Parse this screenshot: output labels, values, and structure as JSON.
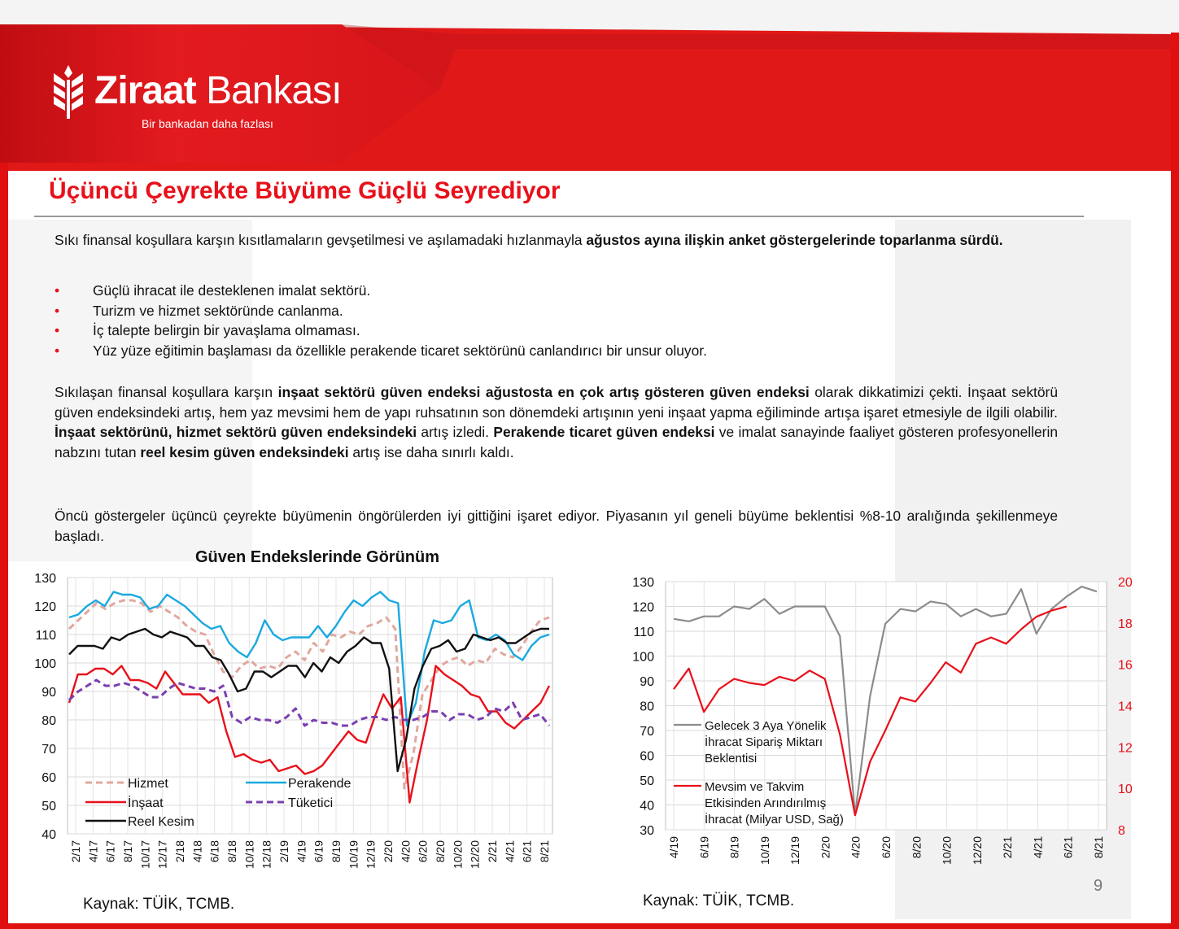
{
  "header": {
    "logo_word1": "Ziraat",
    "logo_word2": "Bankası",
    "tagline": "Bir bankadan daha fazlası"
  },
  "title": "Üçüncü Çeyrekte Büyüme Güçlü Seyrediyor",
  "intro": {
    "text_plain": "Sıkı finansal koşullara karşın kısıtlamaların gevşetilmesi ve aşılamadaki hızlanmayla ",
    "text_bold": "ağustos ayına ilişkin anket göstergelerinde toparlanma sürdü."
  },
  "bullets": [
    "Güçlü ihracat ile desteklenen imalat sektörü.",
    "Turizm ve hizmet sektöründe canlanma.",
    "İç talepte belirgin bir yavaşlama olmaması.",
    "Yüz yüze eğitimin başlaması da özellikle perakende ticaret sektörünü canlandırıcı bir unsur oluyor."
  ],
  "para2": {
    "s1": "Sıkılaşan finansal koşullara karşın ",
    "b1": "inşaat sektörü güven endeksi ağustosta en çok artış gösteren güven endeksi",
    "s2": " olarak dikkatimizi çekti. İnşaat sektörü güven endeksindeki artış, hem yaz mevsimi hem de yapı ruhsatının son dönemdeki artışının yeni inşaat yapma eğiliminde artışa işaret etmesiyle de ilgili olabilir. ",
    "b2": "İnşaat sektörünü, hizmet sektörü güven endeksindeki",
    "s3": " artış izledi. ",
    "b3": "Perakende ticaret güven endeksi",
    "s4": " ve imalat sanayinde faaliyet gösteren profesyonellerin nabzını tutan ",
    "b4": "reel kesim güven endeksindeki",
    "s5": " artış ise daha sınırlı kaldı."
  },
  "para3": "Öncü göstergeler üçüncü çeyrekte büyümenin öngörülerden iyi gittiğini işaret ediyor. Piyasanın yıl geneli büyüme beklentisi %8-10 aralığında şekillenmeye başladı.",
  "source_left": "Kaynak: TÜİK, TCMB.",
  "source_right": "Kaynak: TÜİK, TCMB.",
  "page_number": "9",
  "colors": {
    "brand_red": "#e8101a",
    "grey_line": "#8c8c8c",
    "dashed_pink": "#e0a89f",
    "cyan": "#1aa9e0",
    "purple": "#7a3fb0"
  },
  "chart_data": [
    {
      "type": "line",
      "title": "Güven Endekslerinde Görünüm",
      "ylim": [
        40,
        130
      ],
      "yticks": [
        40,
        50,
        60,
        70,
        80,
        90,
        100,
        110,
        120,
        130
      ],
      "x_tick_labels": [
        "2/17",
        "4/17",
        "6/17",
        "8/17",
        "10/17",
        "12/17",
        "2/18",
        "4/18",
        "6/18",
        "8/18",
        "10/18",
        "12/18",
        "2/19",
        "4/19",
        "6/19",
        "8/19",
        "10/19",
        "12/19",
        "2/20",
        "4/20",
        "6/20",
        "8/20",
        "10/20",
        "12/20",
        "2/21",
        "4/21",
        "6/21",
        "8/21"
      ],
      "grid": true,
      "series": [
        {
          "name": "Hizmet",
          "style": "dashed",
          "color": "#e0a89f",
          "values": [
            112,
            115,
            118,
            121,
            119,
            121,
            122,
            122,
            121,
            118,
            120,
            118,
            116,
            113,
            111,
            110,
            103,
            97,
            95,
            99,
            101,
            98,
            99,
            98,
            102,
            104,
            101,
            107,
            104,
            110,
            109,
            111,
            110,
            113,
            114,
            116,
            112,
            56,
            68,
            89,
            94,
            99,
            101,
            102,
            99,
            101,
            100,
            105,
            103,
            102,
            106,
            111,
            115,
            116
          ]
        },
        {
          "name": "Perakende",
          "style": "solid",
          "color": "#1aa9e0",
          "values": [
            116,
            117,
            120,
            122,
            120,
            125,
            124,
            124,
            123,
            119,
            120,
            124,
            122,
            120,
            117,
            114,
            112,
            113,
            107,
            104,
            102,
            107,
            115,
            110,
            108,
            109,
            109,
            109,
            113,
            109,
            113,
            118,
            122,
            120,
            123,
            125,
            122,
            121,
            78,
            86,
            104,
            115,
            114,
            115,
            120,
            122,
            109,
            108,
            110,
            108,
            103,
            101,
            106,
            109,
            110
          ]
        },
        {
          "name": "İnşaat",
          "style": "solid",
          "color": "#e8101a",
          "values": [
            86,
            96,
            96,
            98,
            98,
            96,
            99,
            94,
            94,
            93,
            91,
            97,
            93,
            89,
            89,
            89,
            86,
            88,
            76,
            67,
            68,
            66,
            65,
            66,
            62,
            63,
            64,
            61,
            62,
            64,
            68,
            72,
            76,
            73,
            72,
            81,
            89,
            84,
            88,
            51,
            66,
            80,
            99,
            96,
            94,
            92,
            89,
            88,
            83,
            83,
            79,
            77,
            80,
            83,
            86,
            92
          ]
        },
        {
          "name": "Tüketici",
          "style": "dashed",
          "color": "#7a3fb0",
          "values": [
            87,
            90,
            92,
            94,
            92,
            92,
            93,
            92,
            90,
            88,
            88,
            91,
            93,
            92,
            91,
            91,
            90,
            92,
            81,
            79,
            81,
            80,
            80,
            79,
            81,
            84,
            78,
            80,
            79,
            79,
            78,
            78,
            80,
            81,
            81,
            80,
            81,
            80,
            80,
            81,
            83,
            83,
            80,
            82,
            82,
            80,
            81,
            84,
            83,
            86,
            80,
            81,
            82,
            78
          ]
        },
        {
          "name": "Reel Kesim",
          "style": "solid",
          "color": "#111111",
          "values": [
            103,
            106,
            106,
            106,
            105,
            109,
            108,
            110,
            111,
            112,
            110,
            109,
            111,
            110,
            109,
            106,
            106,
            102,
            101,
            96,
            90,
            91,
            97,
            97,
            95,
            97,
            99,
            99,
            95,
            100,
            97,
            102,
            100,
            104,
            106,
            109,
            107,
            107,
            98,
            62,
            73,
            91,
            99,
            105,
            106,
            108,
            104,
            105,
            110,
            109,
            108,
            109,
            107,
            107,
            109,
            111,
            112,
            112
          ]
        }
      ],
      "legend": "bottom-left"
    },
    {
      "type": "line",
      "ylim_left": [
        30,
        130
      ],
      "yticks_left": [
        30,
        40,
        50,
        60,
        70,
        80,
        90,
        100,
        110,
        120,
        130
      ],
      "ylim_right": [
        8,
        20
      ],
      "yticks_right": [
        8,
        10,
        12,
        14,
        16,
        18,
        20
      ],
      "x_tick_labels": [
        "4/19",
        "6/19",
        "8/19",
        "10/19",
        "12/19",
        "2/20",
        "4/20",
        "6/20",
        "8/20",
        "10/20",
        "12/20",
        "2/21",
        "4/21",
        "6/21",
        "8/21"
      ],
      "grid": true,
      "series": [
        {
          "name": "Gelecek 3 Aya Yönelik İhracat Sipariş Miktarı Beklentisi",
          "axis": "left",
          "color": "#8c8c8c",
          "values": [
            115,
            114,
            116,
            116,
            120,
            119,
            123,
            117,
            120,
            120,
            120,
            108,
            36,
            84,
            113,
            119,
            118,
            122,
            121,
            116,
            119,
            116,
            117,
            127,
            109,
            119,
            124,
            128,
            126
          ]
        },
        {
          "name": "Mevsim ve Takvim Etkisinden Arındırılmış İhracat (Milyar USD, Sağ)",
          "axis": "right",
          "color": "#e8101a",
          "values": [
            14.8,
            15.8,
            13.7,
            14.8,
            15.3,
            15.1,
            15.0,
            15.4,
            15.2,
            15.7,
            15.3,
            12.6,
            8.7,
            11.3,
            12.8,
            14.4,
            14.2,
            15.1,
            16.1,
            15.6,
            17.0,
            17.3,
            17.0,
            17.7,
            18.3,
            18.6,
            18.8
          ]
        }
      ],
      "legend_labels": {
        "grey_1": "Gelecek 3 Aya Yönelik",
        "grey_2": "İhracat Sipariş Miktarı",
        "grey_3": "Beklentisi",
        "red_1": "Mevsim ve Takvim",
        "red_2": "Etkisinden Arındırılmış",
        "red_3": "İhracat (Milyar USD, Sağ)"
      },
      "legend": "bottom-left"
    }
  ]
}
